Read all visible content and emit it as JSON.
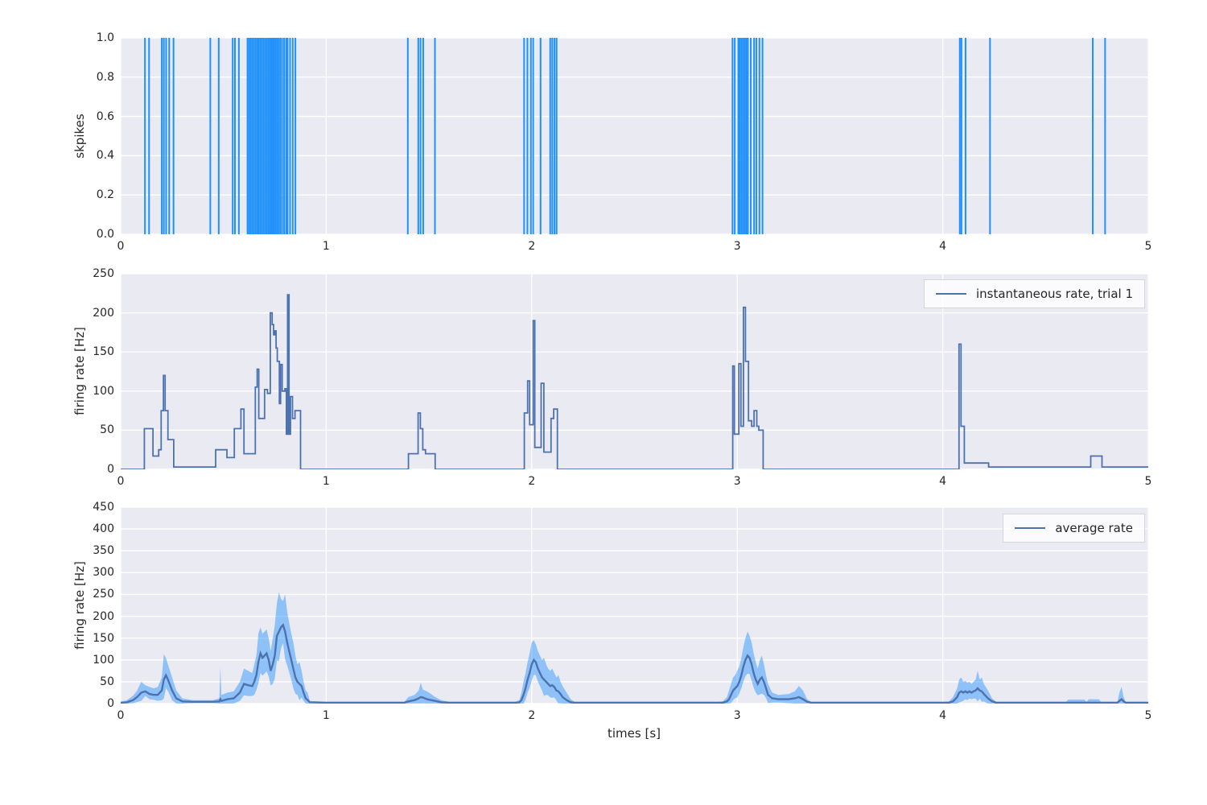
{
  "style": {
    "figure_bg": "#ffffff",
    "axes_bg": "#eaeaf2",
    "grid_color": "#ffffff",
    "tick_color": "#262626",
    "spike_color": "#1e90ff",
    "rate_line_color": "#4c72b0",
    "mean_line_color": "#4c72b0",
    "band_color": "#1e90ff",
    "band_opacity": 0.45
  },
  "chart_data": [
    {
      "type": "scatter",
      "subtype": "spike-raster-eventplot",
      "marker": "vertical-line",
      "ylabel": "skpikes",
      "xlim": [
        0,
        5
      ],
      "ylim": [
        0.0,
        1.0
      ],
      "xticks": {
        "values": [
          0,
          1,
          2,
          3,
          4,
          5
        ],
        "labels": [
          "0",
          "1",
          "2",
          "3",
          "4",
          "5"
        ]
      },
      "yticks": {
        "values": [
          0.0,
          0.2,
          0.4,
          0.6,
          0.8,
          1.0
        ],
        "labels": [
          "0.0",
          "0.2",
          "0.4",
          "0.6",
          "0.8",
          "1.0"
        ]
      },
      "grid": true,
      "spike_times": [
        0.118,
        0.138,
        0.2,
        0.21,
        0.221,
        0.236,
        0.257,
        0.436,
        0.477,
        0.545,
        0.556,
        0.575,
        0.617,
        0.625,
        0.633,
        0.641,
        0.649,
        0.657,
        0.665,
        0.672,
        0.68,
        0.688,
        0.696,
        0.704,
        0.712,
        0.72,
        0.728,
        0.736,
        0.744,
        0.752,
        0.76,
        0.768,
        0.776,
        0.785,
        0.795,
        0.805,
        0.812,
        0.824,
        0.837,
        0.85,
        1.397,
        1.448,
        1.459,
        1.472,
        1.529,
        1.963,
        1.979,
        1.996,
        2.007,
        2.043,
        2.09,
        2.1,
        2.111,
        2.121,
        2.977,
        2.988,
        3.005,
        3.012,
        3.02,
        3.028,
        3.036,
        3.044,
        3.052,
        3.066,
        3.082,
        3.093,
        3.108,
        3.123,
        4.083,
        4.091,
        4.111,
        4.23,
        4.73,
        4.79
      ]
    },
    {
      "type": "line",
      "subtype": "step-post",
      "legend": [
        "instantaneous rate, trial 1"
      ],
      "legend_position": "upper right",
      "ylabel": "firing rate [Hz]",
      "xlim": [
        0,
        5
      ],
      "ylim": [
        0,
        250
      ],
      "xticks": {
        "values": [
          0,
          1,
          2,
          3,
          4,
          5
        ],
        "labels": [
          "0",
          "1",
          "2",
          "3",
          "4",
          "5"
        ]
      },
      "yticks": {
        "values": [
          0,
          50,
          100,
          150,
          200,
          250
        ],
        "labels": [
          "0",
          "50",
          "100",
          "150",
          "200",
          "250"
        ]
      },
      "grid": true,
      "steps": [
        [
          0.0,
          0
        ],
        [
          0.115,
          52
        ],
        [
          0.157,
          17
        ],
        [
          0.185,
          25
        ],
        [
          0.197,
          75
        ],
        [
          0.208,
          120
        ],
        [
          0.216,
          75
        ],
        [
          0.23,
          38
        ],
        [
          0.258,
          3
        ],
        [
          0.462,
          25
        ],
        [
          0.517,
          15
        ],
        [
          0.553,
          52
        ],
        [
          0.585,
          77
        ],
        [
          0.6,
          20
        ],
        [
          0.655,
          105
        ],
        [
          0.664,
          128
        ],
        [
          0.672,
          65
        ],
        [
          0.7,
          102
        ],
        [
          0.714,
          97
        ],
        [
          0.728,
          200
        ],
        [
          0.737,
          185
        ],
        [
          0.744,
          172
        ],
        [
          0.75,
          177
        ],
        [
          0.756,
          155
        ],
        [
          0.762,
          138
        ],
        [
          0.772,
          84
        ],
        [
          0.778,
          134
        ],
        [
          0.786,
          100
        ],
        [
          0.799,
          103
        ],
        [
          0.806,
          45
        ],
        [
          0.812,
          223
        ],
        [
          0.819,
          45
        ],
        [
          0.826,
          93
        ],
        [
          0.836,
          65
        ],
        [
          0.848,
          75
        ],
        [
          0.875,
          0
        ],
        [
          1.4,
          20
        ],
        [
          1.447,
          72
        ],
        [
          1.458,
          52
        ],
        [
          1.47,
          25
        ],
        [
          1.483,
          20
        ],
        [
          1.53,
          0
        ],
        [
          1.964,
          72
        ],
        [
          1.98,
          113
        ],
        [
          1.99,
          57
        ],
        [
          2.007,
          190
        ],
        [
          2.015,
          28
        ],
        [
          2.046,
          110
        ],
        [
          2.059,
          22
        ],
        [
          2.094,
          65
        ],
        [
          2.107,
          77
        ],
        [
          2.125,
          0
        ],
        [
          2.978,
          132
        ],
        [
          2.986,
          45
        ],
        [
          3.008,
          135
        ],
        [
          3.018,
          55
        ],
        [
          3.03,
          207
        ],
        [
          3.04,
          138
        ],
        [
          3.055,
          62
        ],
        [
          3.07,
          55
        ],
        [
          3.082,
          75
        ],
        [
          3.095,
          55
        ],
        [
          3.105,
          50
        ],
        [
          3.126,
          0
        ],
        [
          4.079,
          160
        ],
        [
          4.089,
          55
        ],
        [
          4.105,
          8
        ],
        [
          4.223,
          3
        ],
        [
          4.72,
          17
        ],
        [
          4.775,
          3
        ],
        [
          5.0,
          3
        ]
      ]
    },
    {
      "type": "area",
      "subtype": "mean-with-std-band",
      "legend": [
        "average rate"
      ],
      "legend_position": "upper right",
      "ylabel": "firing rate [Hz]",
      "xlabel": "times [s]",
      "xlim": [
        0,
        5
      ],
      "ylim": [
        0,
        450
      ],
      "xticks": {
        "values": [
          0,
          1,
          2,
          3,
          4,
          5
        ],
        "labels": [
          "0",
          "1",
          "2",
          "3",
          "4",
          "5"
        ]
      },
      "yticks": {
        "values": [
          0,
          50,
          100,
          150,
          200,
          250,
          300,
          350,
          400,
          450
        ],
        "labels": [
          "0",
          "50",
          "100",
          "150",
          "200",
          "250",
          "300",
          "350",
          "400",
          "450"
        ]
      },
      "grid": true,
      "points_t_mean_hi": [
        [
          0.0,
          2,
          4
        ],
        [
          0.03,
          3,
          8
        ],
        [
          0.06,
          8,
          18
        ],
        [
          0.08,
          15,
          30
        ],
        [
          0.1,
          25,
          50
        ],
        [
          0.12,
          28,
          42
        ],
        [
          0.14,
          22,
          38
        ],
        [
          0.16,
          20,
          35
        ],
        [
          0.18,
          20,
          38
        ],
        [
          0.2,
          30,
          60
        ],
        [
          0.21,
          55,
          113
        ],
        [
          0.22,
          65,
          105
        ],
        [
          0.23,
          55,
          90
        ],
        [
          0.25,
          30,
          60
        ],
        [
          0.27,
          12,
          30
        ],
        [
          0.3,
          5,
          12
        ],
        [
          0.35,
          4,
          8
        ],
        [
          0.45,
          4,
          8
        ],
        [
          0.48,
          5,
          12
        ],
        [
          0.485,
          10,
          85
        ],
        [
          0.49,
          6,
          20
        ],
        [
          0.52,
          10,
          25
        ],
        [
          0.55,
          12,
          28
        ],
        [
          0.58,
          25,
          50
        ],
        [
          0.6,
          45,
          80
        ],
        [
          0.62,
          42,
          75
        ],
        [
          0.64,
          40,
          70
        ],
        [
          0.65,
          50,
          90
        ],
        [
          0.66,
          65,
          110
        ],
        [
          0.67,
          95,
          160
        ],
        [
          0.68,
          115,
          175
        ],
        [
          0.69,
          105,
          160
        ],
        [
          0.7,
          110,
          165
        ],
        [
          0.71,
          115,
          170
        ],
        [
          0.72,
          100,
          150
        ],
        [
          0.73,
          75,
          120
        ],
        [
          0.74,
          90,
          150
        ],
        [
          0.75,
          110,
          180
        ],
        [
          0.76,
          155,
          230
        ],
        [
          0.77,
          165,
          255
        ],
        [
          0.78,
          175,
          240
        ],
        [
          0.79,
          180,
          235
        ],
        [
          0.8,
          165,
          250
        ],
        [
          0.81,
          140,
          210
        ],
        [
          0.82,
          120,
          185
        ],
        [
          0.83,
          100,
          160
        ],
        [
          0.84,
          80,
          140
        ],
        [
          0.85,
          60,
          110
        ],
        [
          0.86,
          50,
          90
        ],
        [
          0.87,
          45,
          95
        ],
        [
          0.88,
          40,
          75
        ],
        [
          0.89,
          25,
          50
        ],
        [
          0.9,
          12,
          30
        ],
        [
          0.91,
          8,
          25
        ],
        [
          0.92,
          3,
          6
        ],
        [
          1.0,
          2,
          4
        ],
        [
          1.38,
          2,
          4
        ],
        [
          1.4,
          5,
          15
        ],
        [
          1.43,
          8,
          20
        ],
        [
          1.45,
          12,
          30
        ],
        [
          1.46,
          15,
          48
        ],
        [
          1.47,
          14,
          32
        ],
        [
          1.49,
          10,
          28
        ],
        [
          1.51,
          8,
          22
        ],
        [
          1.53,
          6,
          15
        ],
        [
          1.56,
          3,
          8
        ],
        [
          1.6,
          2,
          4
        ],
        [
          1.92,
          2,
          4
        ],
        [
          1.94,
          3,
          8
        ],
        [
          1.95,
          8,
          25
        ],
        [
          1.96,
          20,
          50
        ],
        [
          1.97,
          35,
          70
        ],
        [
          1.98,
          55,
          95
        ],
        [
          1.99,
          70,
          115
        ],
        [
          2.0,
          90,
          140
        ],
        [
          2.01,
          100,
          145
        ],
        [
          2.02,
          95,
          135
        ],
        [
          2.03,
          80,
          120
        ],
        [
          2.04,
          70,
          110
        ],
        [
          2.05,
          60,
          100
        ],
        [
          2.06,
          55,
          105
        ],
        [
          2.07,
          50,
          90
        ],
        [
          2.08,
          45,
          80
        ],
        [
          2.09,
          40,
          75
        ],
        [
          2.1,
          42,
          80
        ],
        [
          2.11,
          38,
          70
        ],
        [
          2.12,
          30,
          60
        ],
        [
          2.13,
          28,
          65
        ],
        [
          2.14,
          22,
          50
        ],
        [
          2.15,
          15,
          40
        ],
        [
          2.17,
          8,
          25
        ],
        [
          2.19,
          3,
          10
        ],
        [
          2.21,
          2,
          4
        ],
        [
          2.4,
          2,
          4
        ],
        [
          2.9,
          2,
          4
        ],
        [
          2.93,
          2,
          5
        ],
        [
          2.95,
          5,
          15
        ],
        [
          2.96,
          10,
          30
        ],
        [
          2.97,
          20,
          45
        ],
        [
          2.98,
          30,
          60
        ],
        [
          2.99,
          35,
          65
        ],
        [
          3.0,
          40,
          75
        ],
        [
          3.01,
          50,
          85
        ],
        [
          3.02,
          65,
          105
        ],
        [
          3.03,
          85,
          130
        ],
        [
          3.04,
          100,
          150
        ],
        [
          3.05,
          110,
          165
        ],
        [
          3.06,
          105,
          155
        ],
        [
          3.07,
          90,
          140
        ],
        [
          3.08,
          70,
          115
        ],
        [
          3.09,
          55,
          95
        ],
        [
          3.1,
          45,
          80
        ],
        [
          3.11,
          55,
          100
        ],
        [
          3.12,
          60,
          110
        ],
        [
          3.13,
          50,
          90
        ],
        [
          3.14,
          35,
          65
        ],
        [
          3.15,
          20,
          45
        ],
        [
          3.17,
          12,
          25
        ],
        [
          3.2,
          10,
          20
        ],
        [
          3.25,
          10,
          22
        ],
        [
          3.28,
          12,
          28
        ],
        [
          3.3,
          15,
          40
        ],
        [
          3.32,
          10,
          30
        ],
        [
          3.34,
          4,
          10
        ],
        [
          3.36,
          2,
          4
        ],
        [
          3.5,
          2,
          4
        ],
        [
          4.0,
          2,
          4
        ],
        [
          4.03,
          2,
          5
        ],
        [
          4.05,
          5,
          15
        ],
        [
          4.07,
          15,
          35
        ],
        [
          4.08,
          25,
          55
        ],
        [
          4.09,
          28,
          60
        ],
        [
          4.1,
          25,
          50
        ],
        [
          4.11,
          28,
          52
        ],
        [
          4.12,
          25,
          48
        ],
        [
          4.13,
          28,
          50
        ],
        [
          4.14,
          25,
          45
        ],
        [
          4.15,
          28,
          50
        ],
        [
          4.16,
          30,
          55
        ],
        [
          4.17,
          35,
          75
        ],
        [
          4.18,
          30,
          55
        ],
        [
          4.19,
          28,
          60
        ],
        [
          4.2,
          22,
          45
        ],
        [
          4.22,
          12,
          30
        ],
        [
          4.24,
          5,
          12
        ],
        [
          4.26,
          2,
          4
        ],
        [
          4.4,
          2,
          4
        ],
        [
          4.6,
          2,
          4
        ],
        [
          4.61,
          2,
          9
        ],
        [
          4.69,
          2,
          9
        ],
        [
          4.7,
          2,
          4
        ],
        [
          4.71,
          2,
          10
        ],
        [
          4.76,
          2,
          10
        ],
        [
          4.77,
          2,
          4
        ],
        [
          4.85,
          2,
          4
        ],
        [
          4.86,
          6,
          25
        ],
        [
          4.87,
          10,
          38
        ],
        [
          4.88,
          5,
          15
        ],
        [
          4.89,
          2,
          4
        ],
        [
          5.0,
          2,
          4
        ]
      ]
    }
  ]
}
